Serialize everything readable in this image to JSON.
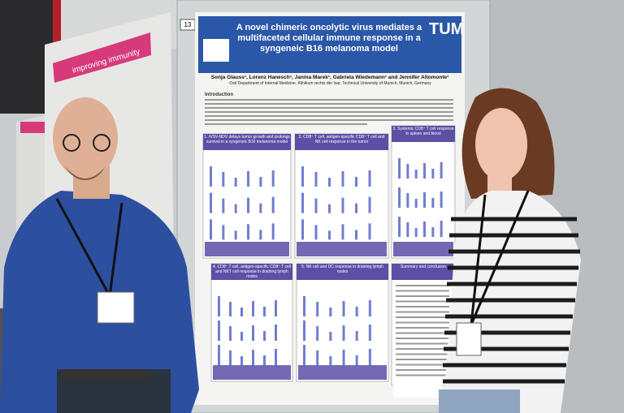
{
  "banner": {
    "text": "improving immunity"
  },
  "poster": {
    "number": "13",
    "logo": "TUM",
    "title": "A novel chimeric oncolytic virus mediates a multifaceted cellular immune response in a syngeneic B16 melanoma model",
    "authors": "Sonja Glauss¹, Lorenz Hanesch¹, Janina Marek¹, Gabriela Wiedemann¹ and Jennifer Altomonte¹",
    "affiliation": "¹2nd Department of Internal Medicine, Klinikum rechts der Isar, Technical University of Munich, Munich, Germany",
    "intro_heading": "Introduction",
    "sections": [
      "1. rVSV-NDV delays tumor growth and prolongs survival in a syngeneic B16 melanoma model",
      "2. CD8⁺ T cell, antigen-specific CD8⁺ T cell and NK cell response in the tumor",
      "3. Systemic CD8⁺ T cell response in spleen and blood",
      "4. CD8⁺ T cell, antigen-specific CD8⁺ T cell and NKT cell response in draining lymph nodes",
      "5. NK cell and DC response in draining lymph nodes",
      "Summary and conclusion"
    ]
  }
}
